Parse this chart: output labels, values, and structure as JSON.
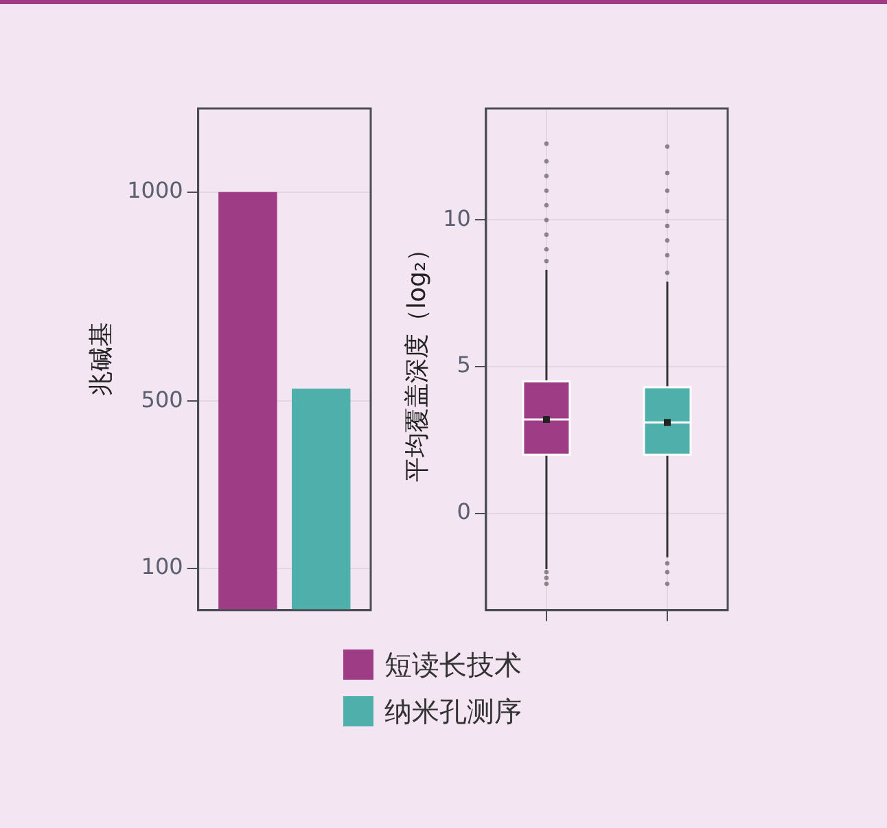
{
  "chart_data": [
    {
      "type": "bar",
      "ylabel": "兆碱基",
      "categories": [
        null
      ],
      "series": [
        {
          "name": "短读长技术",
          "color": "#9e3c86",
          "values": [
            1000
          ]
        },
        {
          "name": "纳米孔测序",
          "color": "#4fb0ab",
          "values": [
            530
          ]
        }
      ],
      "ylim": [
        0,
        1200
      ],
      "yticks": [
        100,
        500,
        1000
      ],
      "grid": "y",
      "legend": "bottom"
    },
    {
      "type": "box",
      "ylabel": "平均覆盖深度（log₂）",
      "categories": [
        null,
        null
      ],
      "colors": [
        "#9e3c86",
        "#4fb0ab"
      ],
      "boxes": [
        {
          "low": -1.9,
          "q1": 2.0,
          "median": 3.2,
          "q3": 4.5,
          "high": 8.3,
          "mean": 3.2,
          "outliers": [
            8.6,
            9,
            9.5,
            10,
            10.5,
            11,
            11.5,
            12,
            12.6,
            -2.0,
            -2.2,
            -2.4
          ]
        },
        {
          "low": -1.5,
          "q1": 2.0,
          "median": 3.1,
          "q3": 4.3,
          "high": 7.9,
          "mean": 3.1,
          "outliers": [
            8.2,
            8.8,
            9.3,
            9.8,
            10.3,
            11,
            11.6,
            12.5,
            -1.7,
            -2.0,
            -2.4
          ]
        }
      ],
      "ylim": [
        -3.3,
        13.8
      ],
      "yticks": [
        0,
        5,
        10
      ],
      "grid": true,
      "legend": false
    }
  ]
}
